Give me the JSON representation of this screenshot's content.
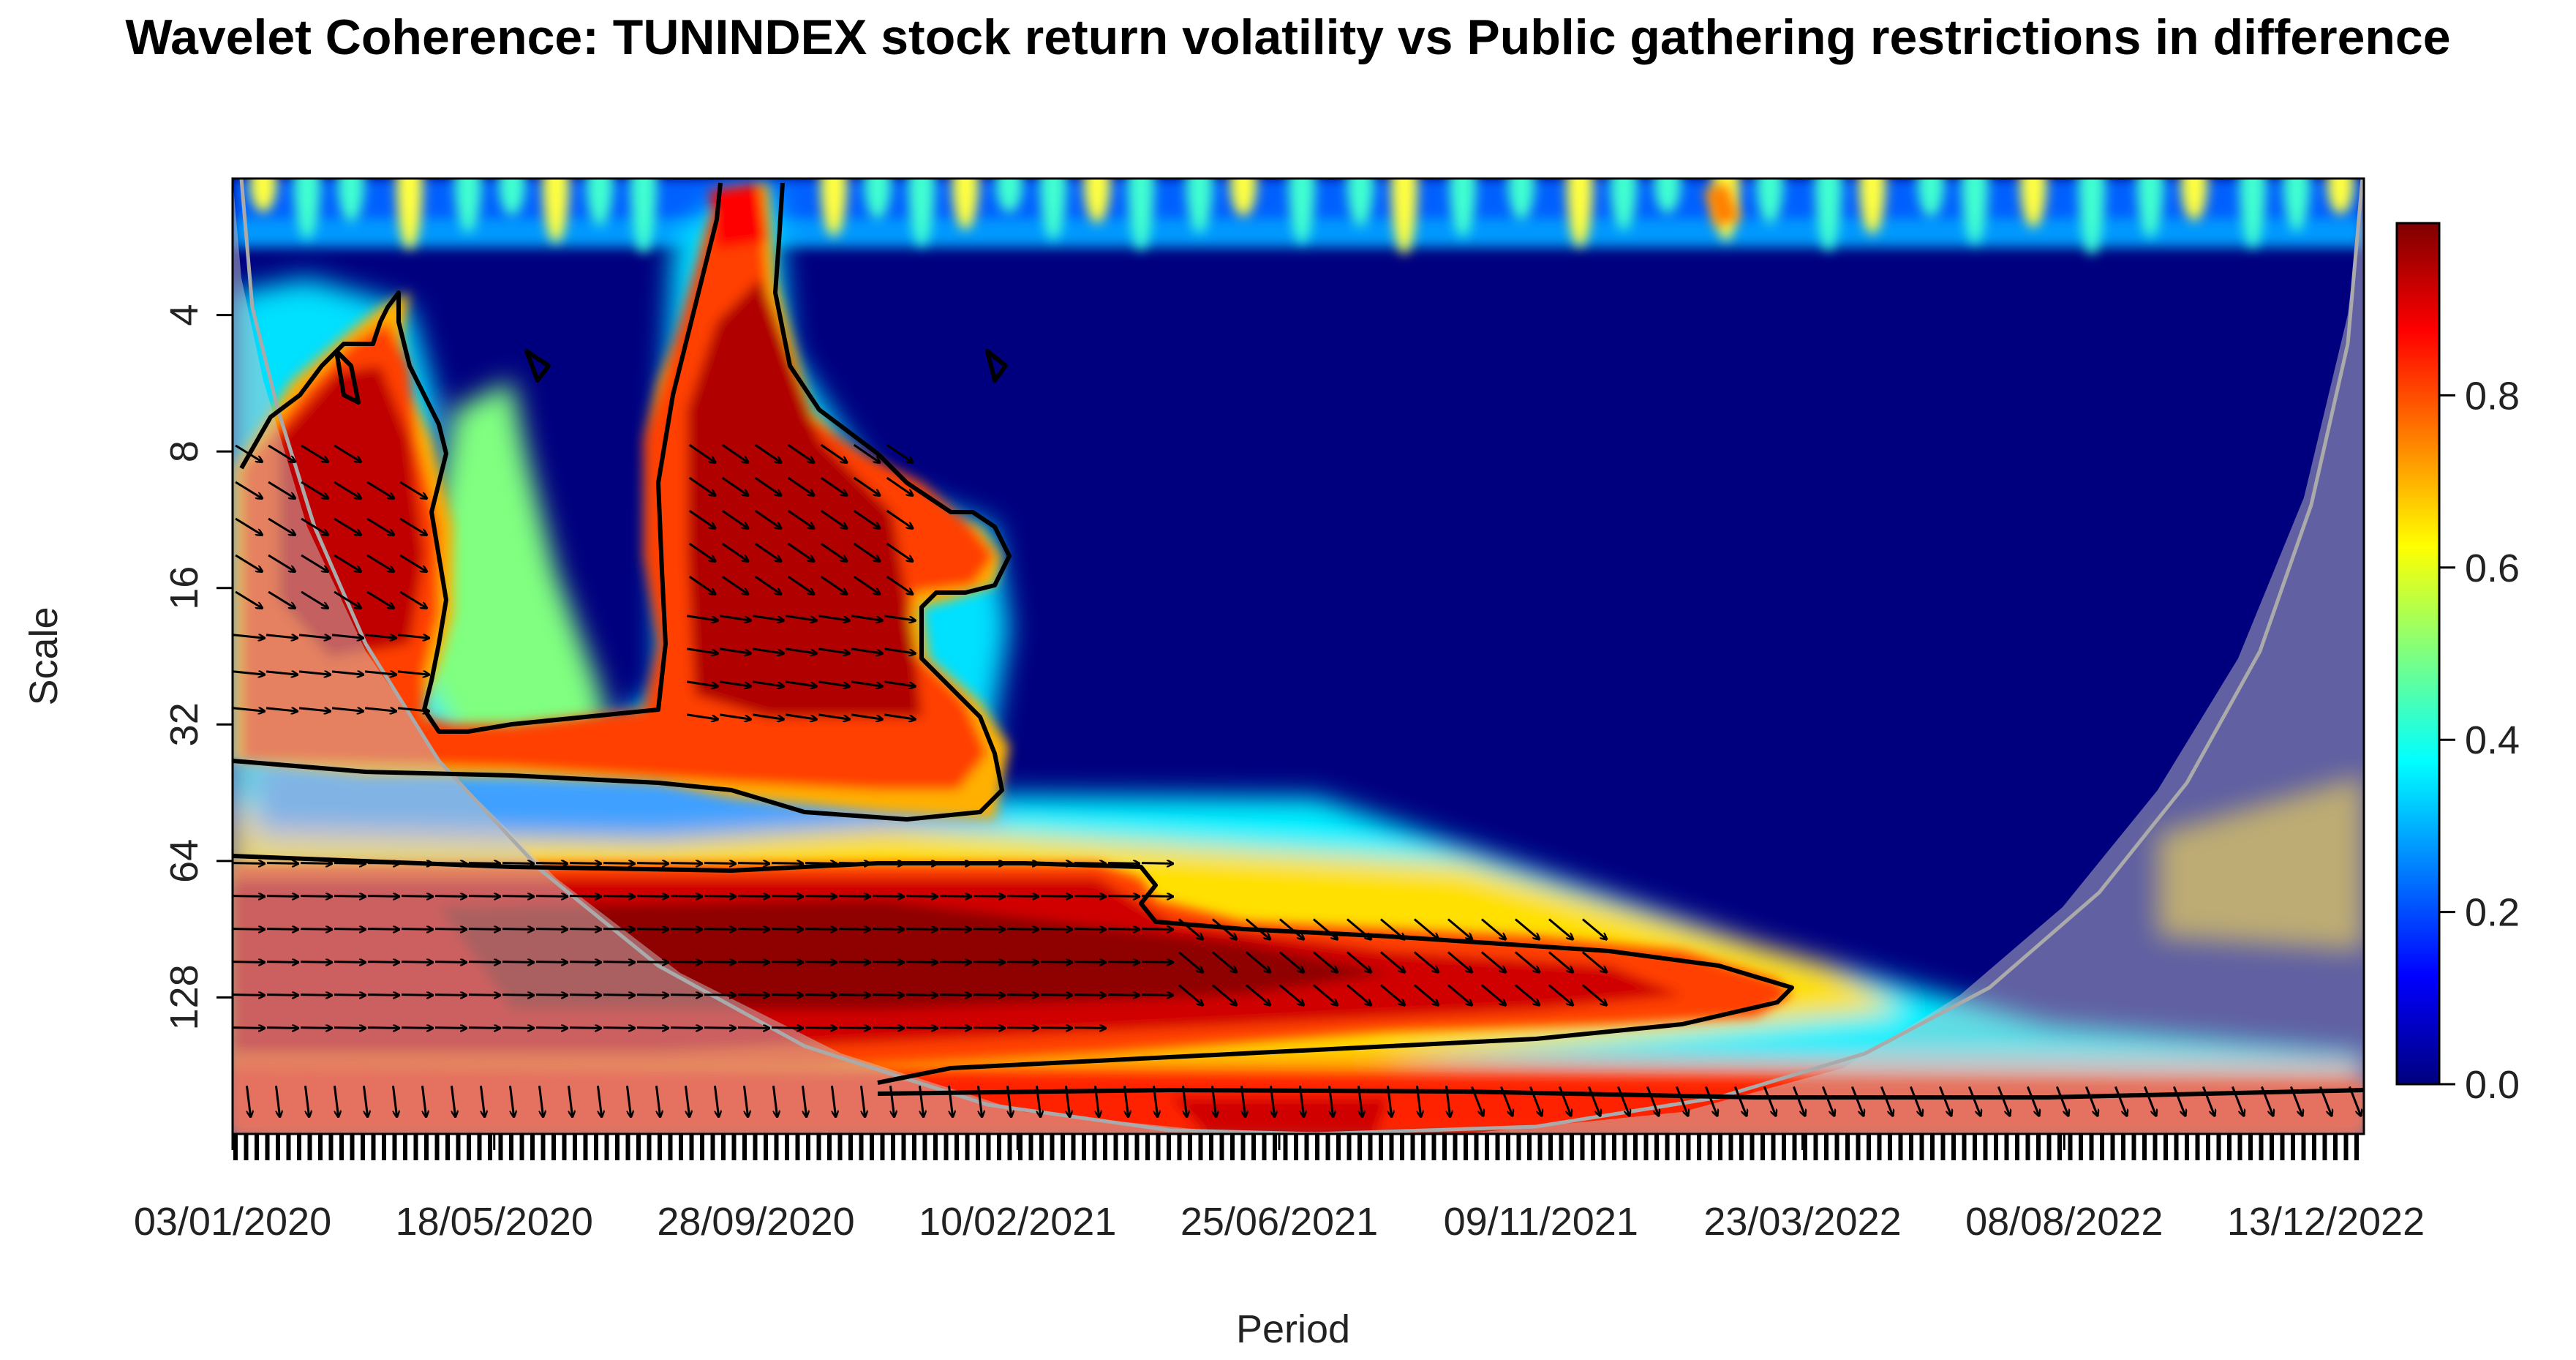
{
  "chart_data": {
    "type": "heatmap",
    "title": "Wavelet Coherence: TUNINDEX stock return volatility vs Public gathering restrictions in difference",
    "xlabel": "Period",
    "ylabel": "Scale",
    "x_tick_labels": [
      "03/01/2020",
      "18/05/2020",
      "28/09/2020",
      "10/02/2021",
      "25/06/2021",
      "09/11/2021",
      "23/03/2022",
      "08/08/2022",
      "13/12/2022"
    ],
    "y_scale": "log2",
    "y_tick_values": [
      4,
      8,
      16,
      32,
      64,
      128
    ],
    "y_tick_labels": [
      "4",
      "8",
      "16",
      "32",
      "64",
      "128"
    ],
    "y_range": [
      2,
      256
    ],
    "colorbar": {
      "range": [
        0,
        1
      ],
      "tick_values": [
        0.0,
        0.2,
        0.4,
        0.6,
        0.8
      ],
      "tick_labels": [
        "0.0",
        "0.2",
        "0.4",
        "0.6",
        "0.8"
      ],
      "palette": [
        "#00007f",
        "#0000ff",
        "#007fff",
        "#00ffff",
        "#7fff7f",
        "#ffff00",
        "#ff7f00",
        "#ff0000",
        "#7f0000"
      ]
    },
    "high_coherence_regions": [
      {
        "period": "early 2020",
        "scale_range": [
          7,
          36
        ],
        "coherence": 0.95,
        "significant": true
      },
      {
        "period": "Aug 2020 - Jan 2021",
        "scale_range": [
          2,
          45
        ],
        "coherence": 0.95,
        "significant": true
      },
      {
        "period": "2020 - early 2022",
        "scale_range": [
          64,
          160
        ],
        "coherence": 0.95,
        "significant": true
      },
      {
        "period": "whole sample",
        "scale_range": [
          180,
          256
        ],
        "coherence": 0.9,
        "significant": true
      }
    ],
    "cone_of_influence": true,
    "phase_arrows": true
  }
}
